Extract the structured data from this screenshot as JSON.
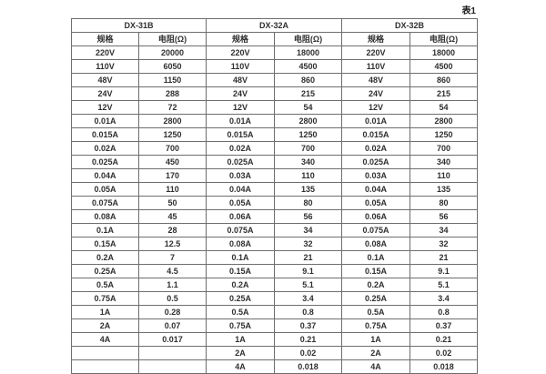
{
  "caption": "表1",
  "colors": {
    "border": "#6e6e6e",
    "text": "#2f2f2f",
    "background": "#ffffff"
  },
  "table": {
    "groups": [
      {
        "name": "DX-31B",
        "spec_header": "规格",
        "res_header": "电阻(Ω)"
      },
      {
        "name": "DX-32A",
        "spec_header": "规格",
        "res_header": "电阻(Ω)"
      },
      {
        "name": "DX-32B",
        "spec_header": "规格",
        "res_header": "电阻(Ω)"
      }
    ],
    "rows": [
      [
        "220V",
        "20000",
        "220V",
        "18000",
        "220V",
        "18000"
      ],
      [
        "110V",
        "6050",
        "110V",
        "4500",
        "110V",
        "4500"
      ],
      [
        "48V",
        "1150",
        "48V",
        "860",
        "48V",
        "860"
      ],
      [
        "24V",
        "288",
        "24V",
        "215",
        "24V",
        "215"
      ],
      [
        "12V",
        "72",
        "12V",
        "54",
        "12V",
        "54"
      ],
      [
        "0.01A",
        "2800",
        "0.01A",
        "2800",
        "0.01A",
        "2800"
      ],
      [
        "0.015A",
        "1250",
        "0.015A",
        "1250",
        "0.015A",
        "1250"
      ],
      [
        "0.02A",
        "700",
        "0.02A",
        "700",
        "0.02A",
        "700"
      ],
      [
        "0.025A",
        "450",
        "0.025A",
        "340",
        "0.025A",
        "340"
      ],
      [
        "0.04A",
        "170",
        "0.03A",
        "110",
        "0.03A",
        "110"
      ],
      [
        "0.05A",
        "110",
        "0.04A",
        "135",
        "0.04A",
        "135"
      ],
      [
        "0.075A",
        "50",
        "0.05A",
        "80",
        "0.05A",
        "80"
      ],
      [
        "0.08A",
        "45",
        "0.06A",
        "56",
        "0.06A",
        "56"
      ],
      [
        "0.1A",
        "28",
        "0.075A",
        "34",
        "0.075A",
        "34"
      ],
      [
        "0.15A",
        "12.5",
        "0.08A",
        "32",
        "0.08A",
        "32"
      ],
      [
        "0.2A",
        "7",
        "0.1A",
        "21",
        "0.1A",
        "21"
      ],
      [
        "0.25A",
        "4.5",
        "0.15A",
        "9.1",
        "0.15A",
        "9.1"
      ],
      [
        "0.5A",
        "1.1",
        "0.2A",
        "5.1",
        "0.2A",
        "5.1"
      ],
      [
        "0.75A",
        "0.5",
        "0.25A",
        "3.4",
        "0.25A",
        "3.4"
      ],
      [
        "1A",
        "0.28",
        "0.5A",
        "0.8",
        "0.5A",
        "0.8"
      ],
      [
        "2A",
        "0.07",
        "0.75A",
        "0.37",
        "0.75A",
        "0.37"
      ],
      [
        "4A",
        "0.017",
        "1A",
        "0.21",
        "1A",
        "0.21"
      ],
      [
        "",
        "",
        "2A",
        "0.02",
        "2A",
        "0.02"
      ],
      [
        "",
        "",
        "4A",
        "0.018",
        "4A",
        "0.018"
      ]
    ]
  }
}
